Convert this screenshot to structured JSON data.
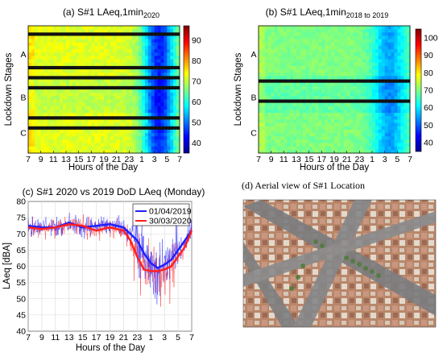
{
  "chart_data": [
    {
      "type": "heatmap",
      "panel_label": "(a)",
      "title": "S#1 LAeq,1min",
      "title_sub": "2020",
      "xlabel": "Hours of the Day",
      "ylabel": "Lockdown Stages",
      "x_ticks": [
        "7",
        "9",
        "11",
        "13",
        "15",
        "17",
        "19",
        "21",
        "23",
        "1",
        "3",
        "5",
        "7"
      ],
      "stage_labels": [
        "A",
        "B",
        "C"
      ],
      "colorbar": {
        "min": 35,
        "max": 97,
        "ticks": [
          40,
          50,
          60,
          70,
          80,
          90
        ]
      },
      "missing_rows": [
        2,
        12,
        15,
        18,
        27,
        30
      ],
      "quiet_hours_level_dBA": 45,
      "day_level_dBA": 72
    },
    {
      "type": "heatmap",
      "panel_label": "(b)",
      "title": "S#1 LAeq,1min",
      "title_sub": "2018 to 2019",
      "xlabel": "Hours of the Day",
      "ylabel": "Lockdown Stages",
      "x_ticks": [
        "7",
        "9",
        "11",
        "13",
        "15",
        "17",
        "19",
        "21",
        "23",
        "1",
        "3",
        "5",
        "7"
      ],
      "stage_labels": [
        "A",
        "B",
        "C"
      ],
      "colorbar": {
        "min": 35,
        "max": 105,
        "ticks": [
          40,
          50,
          60,
          70,
          80,
          90,
          100
        ]
      },
      "missing_rows": [
        16,
        22
      ],
      "quiet_hours_level_dBA": 55,
      "day_level_dBA": 70
    },
    {
      "type": "line",
      "panel_label": "(c)",
      "title": "S#1 2020 vs 2019 DoD LAeq (Monday)",
      "xlabel": "Hours of the Day",
      "ylabel": "LAeq [dBA]",
      "x_ticks": [
        "7",
        "9",
        "11",
        "13",
        "15",
        "17",
        "19",
        "21",
        "23",
        "1",
        "3",
        "5",
        "7"
      ],
      "y_ticks": [
        40,
        45,
        50,
        55,
        60,
        65,
        70,
        75,
        80
      ],
      "ylim": [
        40,
        80
      ],
      "grid": true,
      "legend_position": "top-right",
      "series": [
        {
          "name": "01/04/2019",
          "color": "#1f1fff",
          "hours": [
            0,
            2,
            4,
            6,
            8,
            10,
            12,
            14,
            16,
            17,
            18,
            19,
            20,
            21,
            22,
            23,
            24
          ],
          "values": [
            72.5,
            72,
            72,
            73.5,
            72,
            72.5,
            73,
            72,
            68,
            64,
            61,
            59.5,
            60.5,
            62,
            65,
            68,
            71
          ]
        },
        {
          "name": "30/03/2020",
          "color": "#ff1f1f",
          "hours": [
            0,
            2,
            4,
            6,
            8,
            10,
            12,
            14,
            15,
            16,
            17,
            18,
            19,
            20,
            21,
            22,
            23,
            24
          ],
          "values": [
            72,
            71.5,
            72,
            73,
            72.5,
            71,
            72,
            71,
            68,
            63,
            59,
            58.5,
            58.5,
            59,
            60,
            63,
            66,
            71
          ]
        }
      ]
    }
  ],
  "aerial": {
    "caption": "(d) Aerial view of S#1 Location"
  }
}
